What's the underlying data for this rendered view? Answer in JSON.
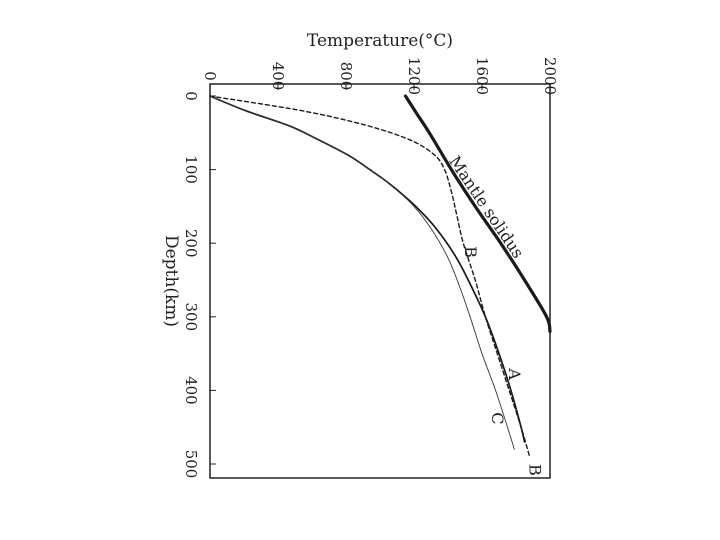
{
  "chart_data": {
    "type": "line",
    "orientation": "rotated-90",
    "xlabel": "Depth(km)",
    "ylabel": "Temperature(°C)",
    "xlim": [
      0,
      520
    ],
    "ylim": [
      0,
      2000
    ],
    "x_ticks": [
      0,
      100,
      200,
      300,
      400,
      500
    ],
    "y_ticks": [
      0,
      400,
      800,
      1200,
      1600,
      2000
    ],
    "grid": false,
    "series": [
      {
        "name": "Mantle solidus",
        "style": "thick",
        "x": [
          0,
          20,
          50,
          100,
          150,
          200,
          250,
          300,
          320
        ],
        "y": [
          1150,
          1205,
          1290,
          1420,
          1560,
          1710,
          1850,
          1980,
          2000
        ]
      },
      {
        "name": "A",
        "style": "medium",
        "x": [
          0,
          20,
          40,
          55,
          80,
          100,
          120,
          150,
          180,
          220,
          260,
          300,
          350,
          400,
          450,
          470
        ],
        "y": [
          0,
          210,
          460,
          600,
          810,
          940,
          1060,
          1210,
          1330,
          1450,
          1540,
          1620,
          1700,
          1770,
          1830,
          1850
        ]
      },
      {
        "name": "B",
        "style": "dashed",
        "x": [
          0,
          20,
          40,
          60,
          80,
          100,
          130,
          160,
          200,
          250,
          300,
          350,
          400,
          450,
          490
        ],
        "y": [
          0,
          540,
          920,
          1180,
          1320,
          1380,
          1420,
          1450,
          1490,
          1560,
          1620,
          1690,
          1760,
          1830,
          1880
        ]
      },
      {
        "name": "C",
        "style": "thin",
        "x": [
          0,
          20,
          40,
          55,
          80,
          100,
          120,
          150,
          180,
          220,
          260,
          300,
          350,
          400,
          450,
          480
        ],
        "y": [
          0,
          210,
          460,
          600,
          810,
          940,
          1060,
          1200,
          1300,
          1400,
          1470,
          1530,
          1600,
          1680,
          1750,
          1790
        ]
      }
    ],
    "labels": [
      {
        "text": "Mantle solidus",
        "x": 155,
        "y": 1600
      },
      {
        "text": "B",
        "x": 212,
        "y": 1500
      },
      {
        "text": "A",
        "x": 378,
        "y": 1760
      },
      {
        "text": "C",
        "x": 438,
        "y": 1660
      },
      {
        "text": "B",
        "x": 508,
        "y": 1880
      }
    ]
  }
}
